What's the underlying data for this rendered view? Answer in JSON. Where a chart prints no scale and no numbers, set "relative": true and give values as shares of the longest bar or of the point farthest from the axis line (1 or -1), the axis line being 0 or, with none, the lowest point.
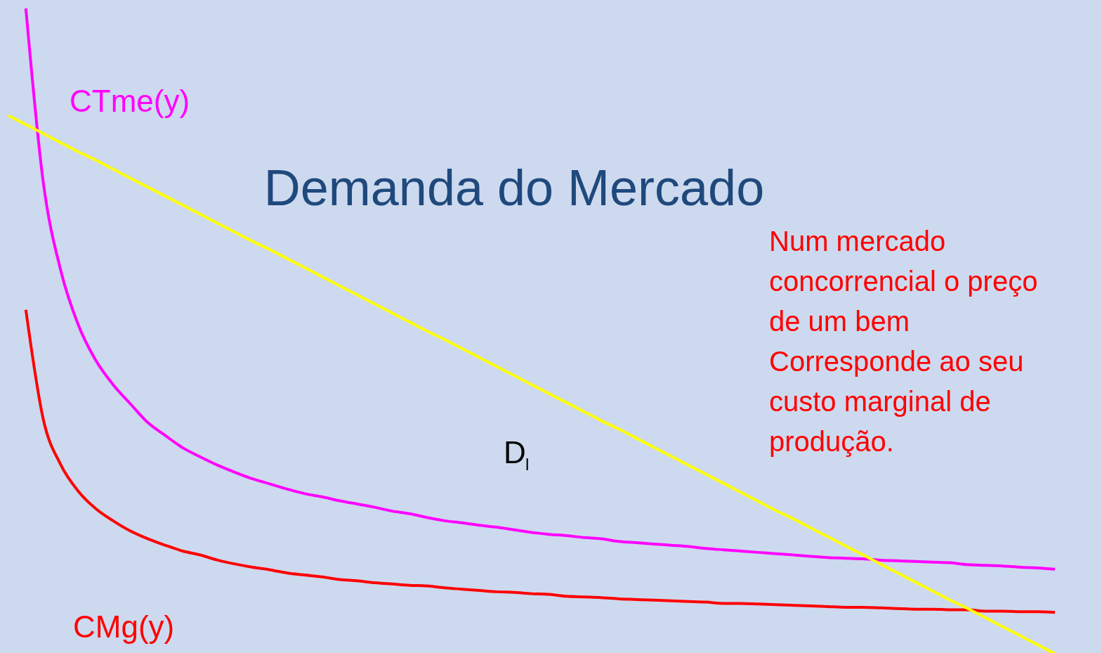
{
  "chart_data": {
    "type": "line",
    "relative": true,
    "title": "Demanda do Mercado",
    "categories": [
      null,
      null,
      null,
      null,
      null,
      null,
      null,
      null,
      null,
      null,
      null,
      null,
      null,
      null,
      null,
      null,
      null,
      null,
      null,
      null,
      null,
      null,
      null,
      null,
      null,
      null,
      null,
      null,
      null,
      null,
      null,
      null,
      null,
      null,
      null,
      null,
      null,
      null,
      null,
      null,
      null,
      null,
      null,
      null,
      null,
      null,
      null,
      null,
      null,
      null,
      null,
      null,
      null,
      null,
      null,
      null,
      null,
      null,
      null,
      null,
      null
    ],
    "series": [
      {
        "name": "CTme(y)",
        "color": "#ff00ff",
        "values": [
          null,
          1.0,
          0.73,
          0.594,
          0.51,
          0.455,
          0.417,
          0.387,
          0.358,
          0.338,
          0.319,
          0.305,
          0.292,
          0.281,
          0.271,
          0.263,
          0.255,
          0.248,
          0.243,
          0.237,
          0.232,
          0.227,
          0.221,
          0.217,
          0.211,
          0.206,
          0.203,
          0.199,
          0.196,
          0.192,
          0.188,
          0.185,
          0.183,
          0.18,
          0.178,
          0.174,
          0.172,
          0.17,
          0.168,
          0.166,
          0.163,
          0.161,
          0.159,
          0.157,
          0.155,
          0.153,
          0.151,
          0.149,
          0.148,
          0.147,
          0.145,
          0.144,
          0.143,
          0.142,
          0.141,
          0.138,
          0.137,
          0.136,
          0.134,
          0.133,
          0.131
        ]
      },
      {
        "name": "CMg(y)",
        "color": "#ff0000",
        "values": [
          null,
          0.533,
          0.363,
          0.293,
          0.252,
          0.225,
          0.206,
          0.19,
          0.178,
          0.168,
          0.159,
          0.153,
          0.145,
          0.139,
          0.134,
          0.13,
          0.125,
          0.122,
          0.119,
          0.115,
          0.113,
          0.11,
          0.108,
          0.106,
          0.105,
          0.102,
          0.1,
          0.098,
          0.096,
          0.095,
          0.093,
          0.092,
          0.089,
          0.088,
          0.087,
          0.085,
          0.084,
          0.083,
          0.082,
          0.081,
          0.08,
          0.078,
          0.078,
          0.077,
          0.076,
          0.075,
          0.074,
          0.073,
          0.072,
          0.072,
          0.071,
          0.07,
          0.069,
          0.069,
          0.068,
          0.068,
          0.066,
          0.066,
          0.065,
          0.065,
          0.064
        ]
      },
      {
        "name": "D$_{l}$",
        "color": "#ffff00",
        "values": [
          0.834,
          0.82,
          0.806,
          0.792,
          0.778,
          0.765,
          0.751,
          0.737,
          0.723,
          0.709,
          0.695,
          0.681,
          0.667,
          0.653,
          0.639,
          0.626,
          0.612,
          0.598,
          0.584,
          0.57,
          0.556,
          0.542,
          0.528,
          0.514,
          0.5,
          0.487,
          0.473,
          0.459,
          0.445,
          0.431,
          0.417,
          0.403,
          0.389,
          0.375,
          0.361,
          0.348,
          0.334,
          0.32,
          0.306,
          0.292,
          0.278,
          0.264,
          0.25,
          0.236,
          0.222,
          0.209,
          0.195,
          0.181,
          0.167,
          0.153,
          0.139,
          0.125,
          0.111,
          0.097,
          0.083,
          0.07,
          0.056,
          0.042,
          0.028,
          0.014,
          0
        ]
      }
    ],
    "annotations": [
      "Num mercado\nconcorrencial o preço\nde um bem\nCorresponde ao seu\ncusto marginal de\nprodução."
    ]
  }
}
